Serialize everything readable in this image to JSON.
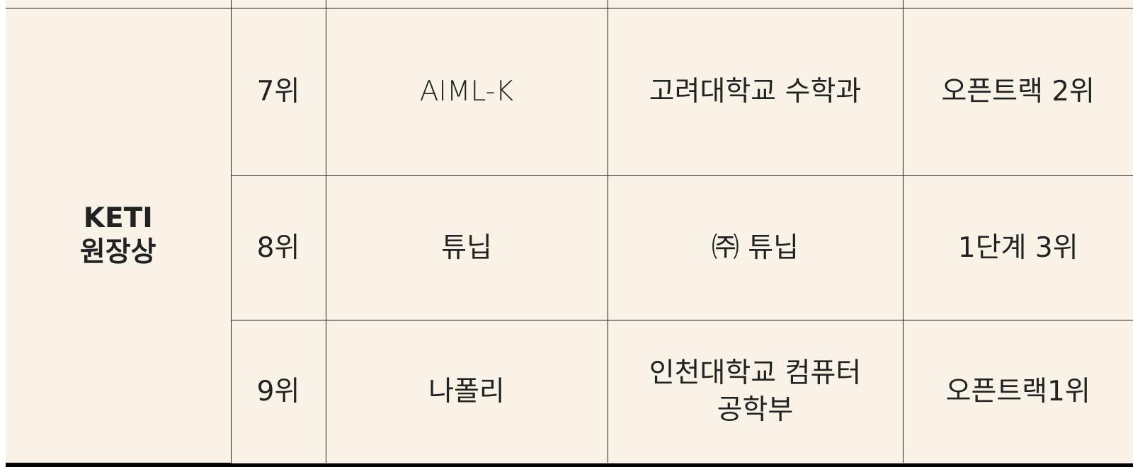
{
  "table": {
    "award": {
      "line1": "KETI",
      "line2": "원장상"
    },
    "rows": [
      {
        "rank": "7위",
        "team": "AIML-K",
        "org": "고려대학교 수학과",
        "note": "오픈트랙 2위"
      },
      {
        "rank": "8위",
        "team": "튜닙",
        "org": "㈜ 튜닙",
        "note": "1단계 3위"
      },
      {
        "rank": "9위",
        "team": "나폴리",
        "org_line1": "인천대학교 컴퓨터",
        "org_line2": "공학부",
        "note": "오픈트랙1위"
      }
    ]
  },
  "colors": {
    "cell_background": "#f9f3e7",
    "grid_line": "#1f1f1f",
    "bottom_rule": "#000000"
  }
}
